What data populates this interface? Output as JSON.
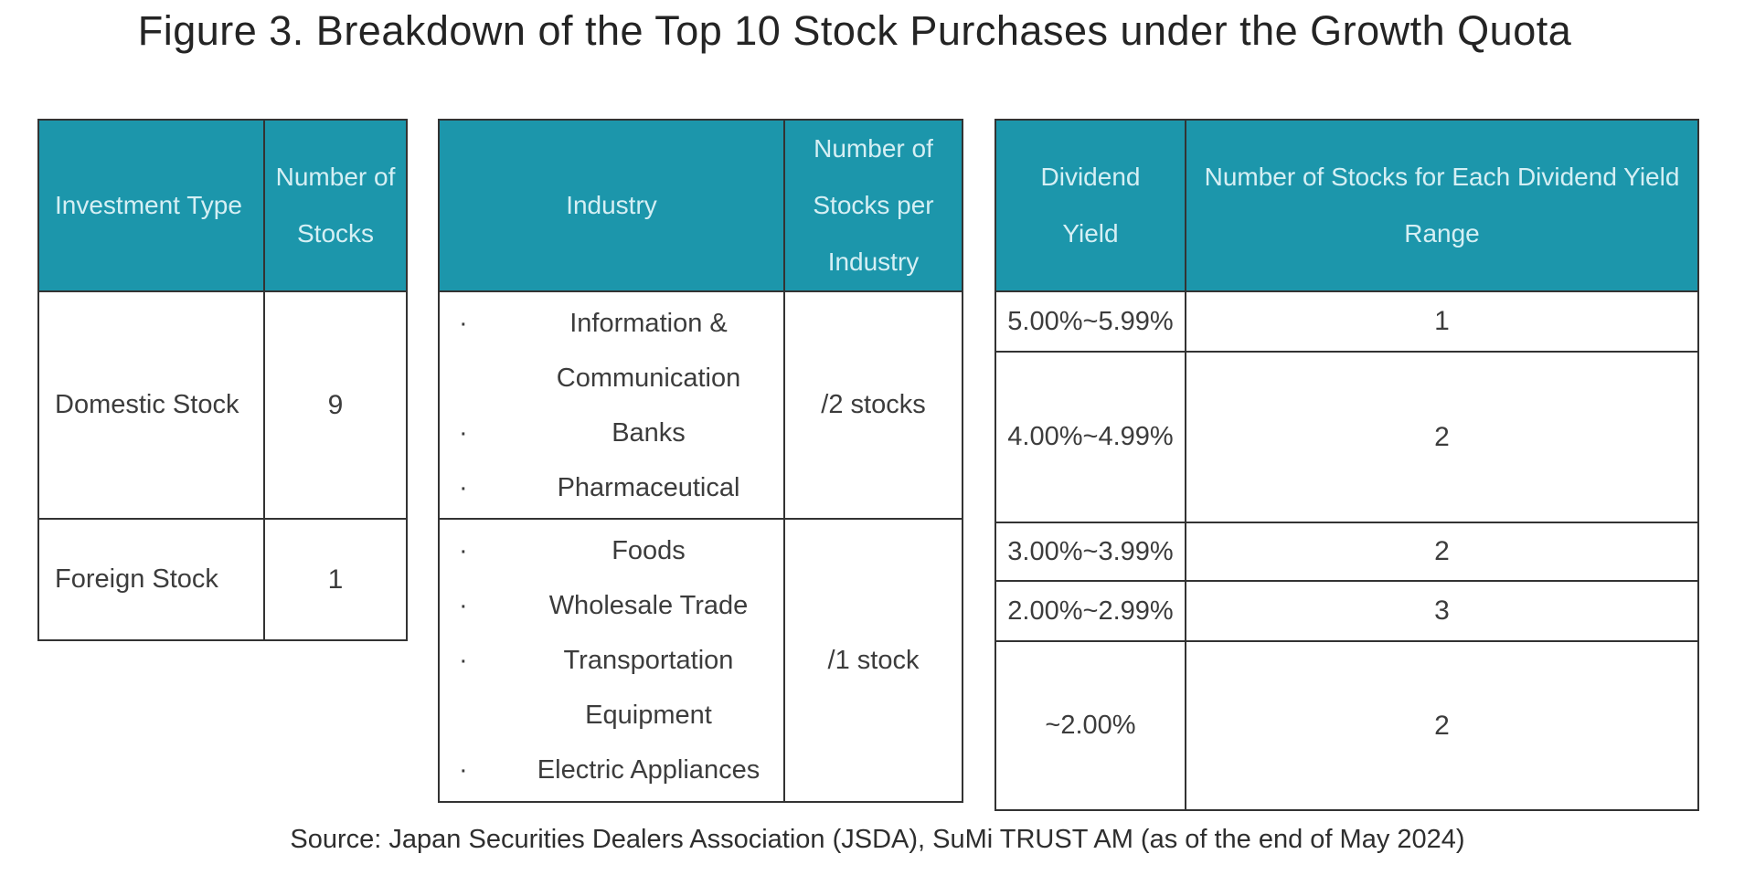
{
  "title": "Figure 3. Breakdown of the Top 10 Stock Purchases under the Growth Quota",
  "source": "Source: Japan Securities Dealers Association (JSDA), SuMi TRUST AM (as of the end of May 2024)",
  "colors": {
    "header_bg": "#1c96ab",
    "header_text": "#d5eff4",
    "body_text": "#3c3c3c",
    "border": "#333333"
  },
  "bullet": "·",
  "investment_table": {
    "headers": {
      "type": "Investment Type",
      "count": "Number of Stocks"
    },
    "rows": [
      {
        "type": "Domestic Stock",
        "count": "9"
      },
      {
        "type": "Foreign Stock",
        "count": "1"
      }
    ]
  },
  "industry_table": {
    "headers": {
      "industry": "Industry",
      "count": "Number of Stocks per Industry"
    },
    "groups": [
      {
        "industries": [
          "Information & Communication",
          "Banks",
          "Pharmaceutical"
        ],
        "per": "/2 stocks"
      },
      {
        "industries": [
          "Foods",
          "Wholesale Trade",
          "Transportation Equipment",
          "Electric Appliances"
        ],
        "per": "/1 stock"
      }
    ]
  },
  "dividend_table": {
    "headers": {
      "yield": "Dividend Yield",
      "count": "Number of Stocks for Each Dividend Yield Range"
    },
    "rows": [
      {
        "range": "5.00%~5.99%",
        "count": "1"
      },
      {
        "range": "4.00%~4.99%",
        "count": "2"
      },
      {
        "range": "3.00%~3.99%",
        "count": "2"
      },
      {
        "range": "2.00%~2.99%",
        "count": "3"
      },
      {
        "range": "~2.00%",
        "count": "2"
      }
    ]
  }
}
